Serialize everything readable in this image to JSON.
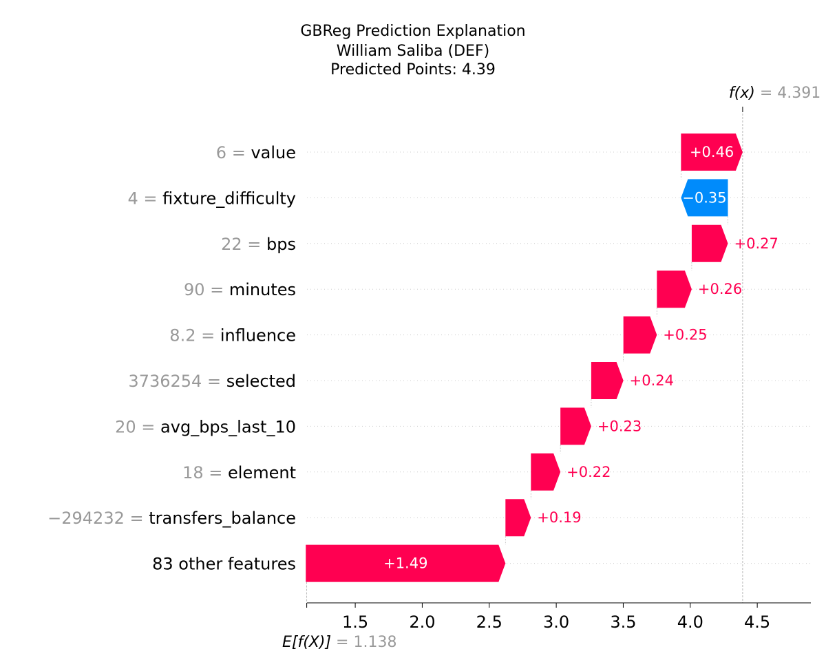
{
  "chart_data": {
    "type": "waterfall",
    "title_lines": [
      "GBReg Prediction Explanation",
      "William Saliba (DEF)",
      "Predicted Points: 4.39"
    ],
    "fx_label": "f(x)",
    "fx_value": "4.391",
    "ex_label": "E[f(X)]",
    "ex_value": "1.138",
    "base_value": 1.138,
    "final_value": 4.391,
    "xlim": [
      1.14,
      4.9
    ],
    "xticks": [
      "1.5",
      "2.0",
      "2.5",
      "3.0",
      "3.5",
      "4.0",
      "4.5"
    ],
    "positive_color": "#ff0051",
    "negative_color": "#008bfb",
    "features": [
      {
        "value_text": "6",
        "name": "value",
        "contribution": 0.46,
        "label": "+0.46"
      },
      {
        "value_text": "4",
        "name": "fixture_difficulty",
        "contribution": -0.35,
        "label": "−0.35"
      },
      {
        "value_text": "22",
        "name": "bps",
        "contribution": 0.27,
        "label": "+0.27"
      },
      {
        "value_text": "90",
        "name": "minutes",
        "contribution": 0.26,
        "label": "+0.26"
      },
      {
        "value_text": "8.2",
        "name": "influence",
        "contribution": 0.25,
        "label": "+0.25"
      },
      {
        "value_text": "3736254",
        "name": "selected",
        "contribution": 0.24,
        "label": "+0.24"
      },
      {
        "value_text": "20",
        "name": "avg_bps_last_10",
        "contribution": 0.23,
        "label": "+0.23"
      },
      {
        "value_text": "18",
        "name": "element",
        "contribution": 0.22,
        "label": "+0.22"
      },
      {
        "value_text": "−294232",
        "name": "transfers_balance",
        "contribution": 0.19,
        "label": "+0.19"
      },
      {
        "value_text": "",
        "name": "83 other features",
        "contribution": 1.49,
        "label": "+1.49"
      }
    ]
  }
}
